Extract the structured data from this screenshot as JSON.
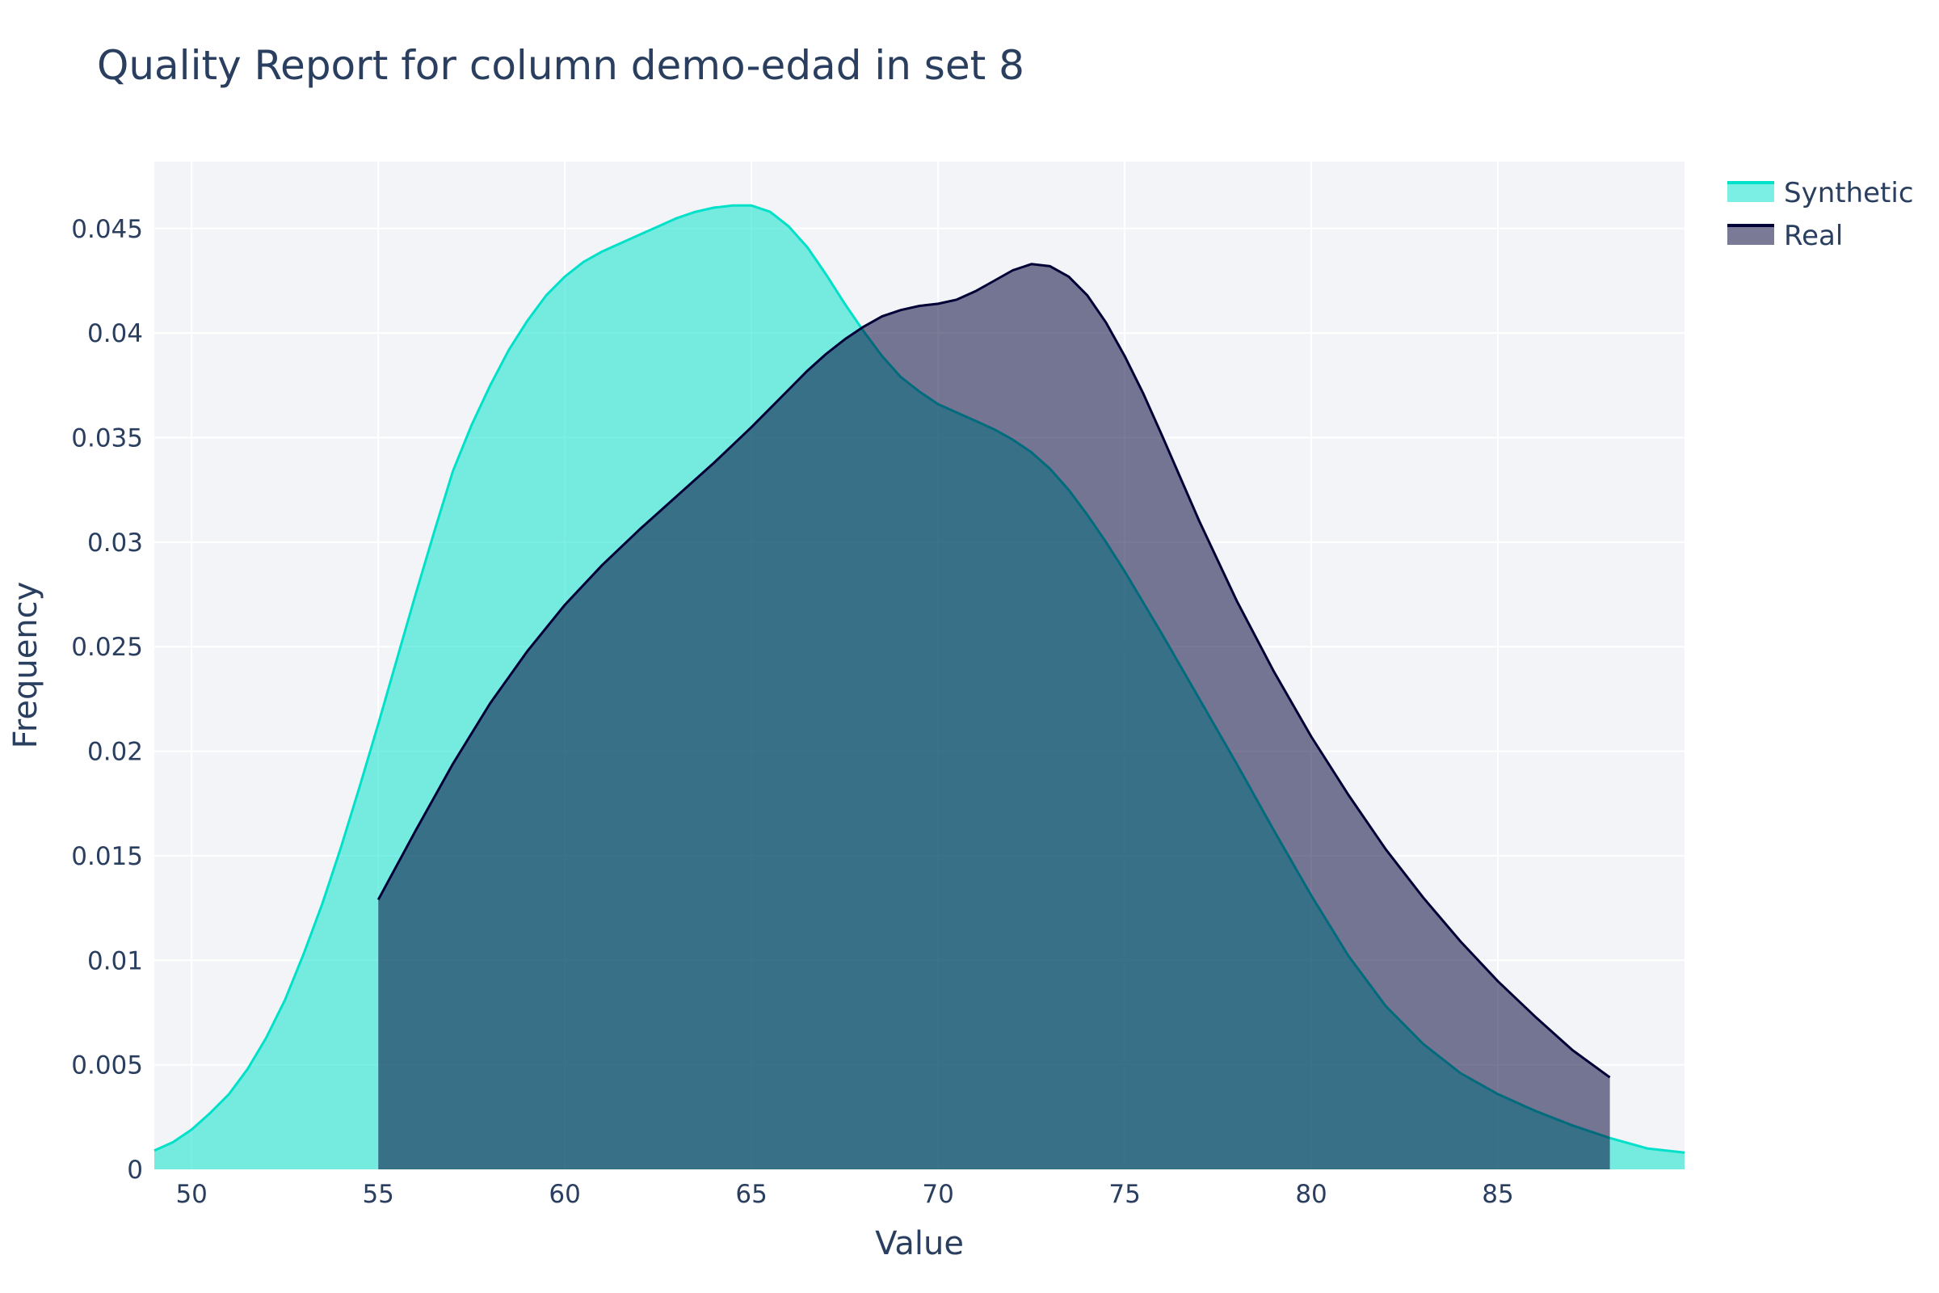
{
  "chart_data": {
    "type": "area",
    "title": "Quality Report for column demo-edad in set 8",
    "xlabel": "Value",
    "ylabel": "Frequency",
    "xlim": [
      49,
      90
    ],
    "ylim": [
      0,
      0.0482
    ],
    "x_ticks": [
      50,
      55,
      60,
      65,
      70,
      75,
      80,
      85
    ],
    "y_ticks": [
      0,
      0.005,
      0.01,
      0.015,
      0.02,
      0.025,
      0.03,
      0.035,
      0.04,
      0.045
    ],
    "y_tick_labels": [
      "0",
      "0.005",
      "0.01",
      "0.015",
      "0.02",
      "0.025",
      "0.03",
      "0.035",
      "0.04",
      "0.045"
    ],
    "grid": true,
    "legend_position": "top-right",
    "series": [
      {
        "name": "Synthetic",
        "color": "#01e0c9",
        "fill_opacity": 0.52,
        "x": [
          49,
          49.5,
          50,
          50.5,
          51,
          51.5,
          52,
          52.5,
          53,
          53.5,
          54,
          54.5,
          55,
          55.5,
          56,
          56.5,
          57,
          57.5,
          58,
          58.5,
          59,
          59.5,
          60,
          60.5,
          61,
          61.5,
          62,
          62.5,
          63,
          63.5,
          64,
          64.5,
          65,
          65.5,
          66,
          66.5,
          67,
          67.5,
          68,
          68.5,
          69,
          69.5,
          70,
          70.5,
          71,
          71.5,
          72,
          72.5,
          73,
          73.5,
          74,
          74.5,
          75,
          75.5,
          76,
          77,
          78,
          79,
          80,
          81,
          82,
          83,
          84,
          85,
          86,
          87,
          88,
          89,
          90
        ],
        "y": [
          0.0009,
          0.0013,
          0.0019,
          0.0027,
          0.0036,
          0.0048,
          0.0063,
          0.0081,
          0.0103,
          0.0127,
          0.0154,
          0.0183,
          0.0213,
          0.0244,
          0.0275,
          0.0305,
          0.0334,
          0.0356,
          0.0375,
          0.0392,
          0.0406,
          0.0418,
          0.0427,
          0.0434,
          0.0439,
          0.0443,
          0.0447,
          0.0451,
          0.0455,
          0.0458,
          0.046,
          0.0461,
          0.0461,
          0.0458,
          0.0451,
          0.0441,
          0.0428,
          0.0414,
          0.0401,
          0.0389,
          0.0379,
          0.0372,
          0.0366,
          0.0362,
          0.0358,
          0.0354,
          0.0349,
          0.0343,
          0.0335,
          0.0325,
          0.0313,
          0.03,
          0.0286,
          0.0271,
          0.0256,
          0.0225,
          0.0194,
          0.0162,
          0.0131,
          0.0102,
          0.0078,
          0.006,
          0.0046,
          0.0036,
          0.0028,
          0.0021,
          0.0015,
          0.001,
          0.0008
        ]
      },
      {
        "name": "Real",
        "color": "#000036",
        "fill_opacity": 0.52,
        "x": [
          55,
          56,
          57,
          58,
          59,
          60,
          61,
          62,
          63,
          64,
          65,
          65.5,
          66,
          66.5,
          67,
          67.5,
          68,
          68.5,
          69,
          69.5,
          70,
          70.5,
          71,
          71.5,
          72,
          72.5,
          73,
          73.5,
          74,
          74.5,
          75,
          75.5,
          76,
          77,
          78,
          79,
          80,
          81,
          82,
          83,
          84,
          85,
          86,
          87,
          88
        ],
        "y": [
          0.0129,
          0.0162,
          0.0194,
          0.0223,
          0.0248,
          0.027,
          0.0289,
          0.0306,
          0.0322,
          0.0338,
          0.0355,
          0.0364,
          0.0373,
          0.0382,
          0.039,
          0.0397,
          0.0403,
          0.0408,
          0.0411,
          0.0413,
          0.0414,
          0.0416,
          0.042,
          0.0425,
          0.043,
          0.0433,
          0.0432,
          0.0427,
          0.0418,
          0.0405,
          0.0389,
          0.0371,
          0.0351,
          0.031,
          0.0272,
          0.0238,
          0.0207,
          0.0179,
          0.0153,
          0.013,
          0.0109,
          0.009,
          0.0073,
          0.0057,
          0.0044
        ]
      }
    ]
  }
}
